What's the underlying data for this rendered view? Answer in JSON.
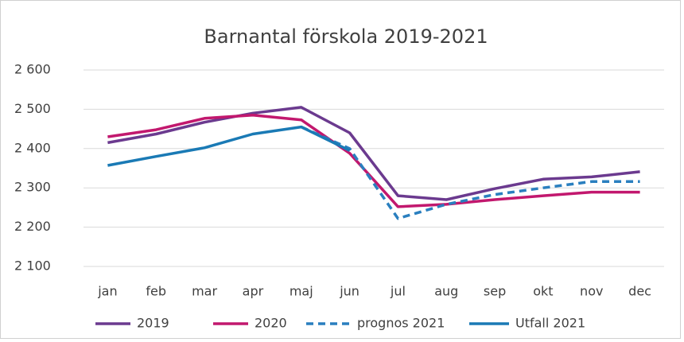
{
  "chart_data": {
    "type": "line",
    "title": "Barnantal förskola 2019-2021",
    "categories": [
      "jan",
      "feb",
      "mar",
      "apr",
      "maj",
      "jun",
      "jul",
      "aug",
      "sep",
      "okt",
      "nov",
      "dec"
    ],
    "series": [
      {
        "name": "2019",
        "color": "#6b3a8f",
        "dashed": false,
        "values": [
          2415,
          2437,
          2467,
          2490,
          2505,
          2440,
          2280,
          2270,
          2298,
          2322,
          2328,
          2341
        ]
      },
      {
        "name": "2020",
        "color": "#c2186e",
        "dashed": false,
        "values": [
          2430,
          2448,
          2477,
          2485,
          2473,
          2388,
          2252,
          2258,
          2270,
          2280,
          2289,
          2289
        ]
      },
      {
        "name": "prognos 2021",
        "color": "#2a7fbf",
        "dashed": true,
        "values": [
          null,
          null,
          null,
          null,
          2455,
          2400,
          2222,
          2258,
          2283,
          2300,
          2316,
          2316
        ]
      },
      {
        "name": "Utfall 2021",
        "color": "#1a7ab5",
        "dashed": false,
        "values": [
          2357,
          2380,
          2402,
          2437,
          2455,
          2395,
          null,
          null,
          null,
          null,
          null,
          null
        ]
      }
    ],
    "ylim": [
      2100,
      2600
    ],
    "yticks": [
      {
        "value": 2100,
        "label": "2 100"
      },
      {
        "value": 2200,
        "label": "2 200"
      },
      {
        "value": 2300,
        "label": "2 300"
      },
      {
        "value": 2400,
        "label": "2 400"
      },
      {
        "value": 2500,
        "label": "2 500"
      },
      {
        "value": 2600,
        "label": "2 600"
      }
    ],
    "grid": true,
    "legend": "bottom"
  }
}
